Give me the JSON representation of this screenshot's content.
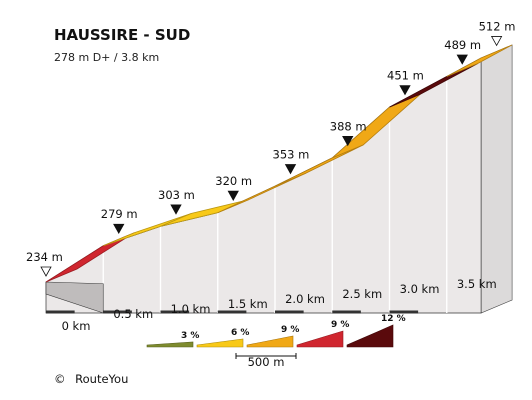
{
  "chart_data": {
    "type": "area",
    "title": "HAUSSIRE - SUD",
    "subtitle": "278 m D+ / 3.8 km",
    "xlabel": "",
    "ylabel": "",
    "x_unit": "km",
    "x_ticks": [
      "0 km",
      "0.5 km",
      "1.0 km",
      "1.5 km",
      "2.0 km",
      "2.5 km",
      "3.0 km",
      "3.5 km"
    ],
    "x": [
      0,
      0.5,
      1.0,
      1.5,
      2.0,
      2.5,
      3.0,
      3.5,
      3.8
    ],
    "elevation_m": [
      234,
      279,
      303,
      320,
      353,
      388,
      451,
      489,
      512
    ],
    "point_labels": [
      "234 m",
      "279 m",
      "303 m",
      "320 m",
      "353 m",
      "388 m",
      "451 m",
      "489 m",
      "512 m"
    ],
    "segment_colors": [
      "#d0262f",
      "#f8c918",
      "#f8c918",
      "#f0a816",
      "#f0a816",
      "#f0a816",
      "#5a0a0c",
      "#f0a816"
    ],
    "legend": {
      "items": [
        {
          "label": "3 %",
          "color": "#7e8b2e"
        },
        {
          "label": "6 %",
          "color": "#f8c918"
        },
        {
          "label": "9 %",
          "color": "#f0a816"
        },
        {
          "label": "9 %",
          "color": "#d0262f"
        },
        {
          "label": "12 %",
          "color": "#5a0a0c"
        }
      ],
      "scale_label": "500 m"
    },
    "credit": "RouteYou",
    "credit_symbol": "©"
  }
}
